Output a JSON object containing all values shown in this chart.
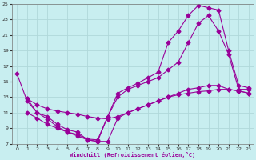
{
  "xlabel": "Windchill (Refroidissement éolien,°C)",
  "background_color": "#c8eef0",
  "grid_color": "#b0d8da",
  "line_color": "#990099",
  "xlim": [
    -0.5,
    23.5
  ],
  "ylim": [
    7,
    25
  ],
  "xticks": [
    0,
    1,
    2,
    3,
    4,
    5,
    6,
    7,
    8,
    9,
    10,
    11,
    12,
    13,
    14,
    15,
    16,
    17,
    18,
    19,
    20,
    21,
    22,
    23
  ],
  "yticks": [
    7,
    9,
    11,
    13,
    15,
    17,
    19,
    21,
    23,
    25
  ],
  "curve_upper_x": [
    0,
    1,
    2,
    3,
    4,
    5,
    6,
    7,
    8,
    9,
    10,
    11,
    12,
    13,
    14,
    15,
    16,
    17,
    18,
    19,
    20,
    21,
    22,
    23
  ],
  "curve_upper_y": [
    16.0,
    12.5,
    11.0,
    10.2,
    9.2,
    8.5,
    8.2,
    7.6,
    7.5,
    10.5,
    13.5,
    14.2,
    14.8,
    15.5,
    16.2,
    20.0,
    21.5,
    23.5,
    24.8,
    24.5,
    24.2,
    19.0,
    14.5,
    14.2
  ],
  "curve_mid_x": [
    1,
    2,
    3,
    4,
    5,
    6,
    7,
    8,
    9,
    10,
    11,
    12,
    13,
    14,
    15,
    16,
    17,
    18,
    19,
    20,
    21,
    22,
    23
  ],
  "curve_mid_y": [
    12.8,
    12.0,
    11.5,
    11.2,
    11.0,
    10.8,
    10.5,
    10.3,
    10.2,
    10.5,
    11.0,
    11.5,
    12.0,
    12.5,
    13.0,
    13.3,
    13.5,
    13.7,
    13.8,
    14.0,
    14.0,
    13.8,
    13.5
  ],
  "curve_low_x": [
    1,
    2,
    3,
    4,
    5,
    6,
    7,
    8,
    9,
    10,
    11,
    12,
    13,
    14,
    15,
    16,
    17,
    18,
    19,
    20,
    21,
    22,
    23
  ],
  "curve_low_y": [
    11.0,
    10.3,
    9.5,
    9.0,
    8.5,
    8.0,
    7.5,
    7.3,
    10.5,
    13.0,
    14.0,
    14.5,
    15.0,
    15.5,
    16.5,
    17.5,
    20.0,
    22.5,
    23.5,
    21.5,
    18.5,
    14.0,
    14.0
  ],
  "curve_bot_x": [
    1,
    2,
    3,
    4,
    5,
    6,
    7,
    8,
    9,
    10,
    11,
    12,
    13,
    14,
    15,
    16,
    17,
    18,
    19,
    20,
    21,
    22,
    23
  ],
  "curve_bot_y": [
    12.8,
    11.0,
    10.5,
    9.5,
    8.8,
    8.5,
    7.5,
    7.3,
    7.3,
    10.3,
    11.0,
    11.5,
    12.0,
    12.5,
    13.0,
    13.5,
    14.0,
    14.2,
    14.5,
    14.5,
    14.0,
    13.8,
    13.5
  ]
}
